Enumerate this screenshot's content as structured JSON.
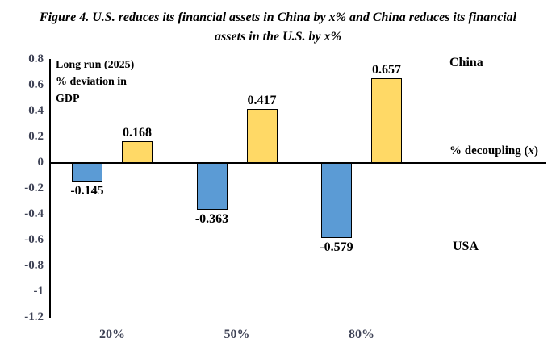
{
  "title": {
    "line1": "Figure 4.  U.S. reduces its financial assets in China by x% and China reduces its financial",
    "line2": "assets in the U.S. by x%"
  },
  "chart_data": {
    "type": "bar",
    "title": "Figure 4. U.S. reduces its financial assets in China by x% and China reduces its financial assets in the U.S. by x%",
    "categories": [
      "20%",
      "50%",
      "80%"
    ],
    "series": [
      {
        "name": "USA",
        "color": "#5B9BD5",
        "values": [
          -0.145,
          -0.363,
          -0.579
        ]
      },
      {
        "name": "China",
        "color": "#FFD966",
        "values": [
          0.168,
          0.417,
          0.657
        ]
      }
    ],
    "xlabel": "% decoupling (x)",
    "ylabel": "Long run (2025) % deviation in GDP",
    "ylim": [
      -1.2,
      0.8
    ],
    "ytick_labels": [
      "0.8",
      "0.6",
      "0.4",
      "0.2",
      "0",
      "-0.2",
      "-0.4",
      "-0.6",
      "-0.8",
      "-1",
      "-1.2"
    ],
    "grid": false,
    "bar_value_labels": true,
    "legend_position": "none (in-plot text annotations)"
  },
  "annotations": {
    "axis_note_line1": "Long run (2025)",
    "axis_note_line2": "% deviation in",
    "axis_note_line3": "GDP",
    "china_label": "China",
    "usa_label": "USA",
    "decoupling_prefix": "% decoupling (",
    "decoupling_x": "x",
    "decoupling_suffix": ")"
  },
  "colors": {
    "usa_bar": "#5B9BD5",
    "china_bar": "#FFD966",
    "bar_border": "#000000",
    "axis_line": "#000000",
    "tick_text": "#3f4356",
    "background": "#ffffff"
  }
}
